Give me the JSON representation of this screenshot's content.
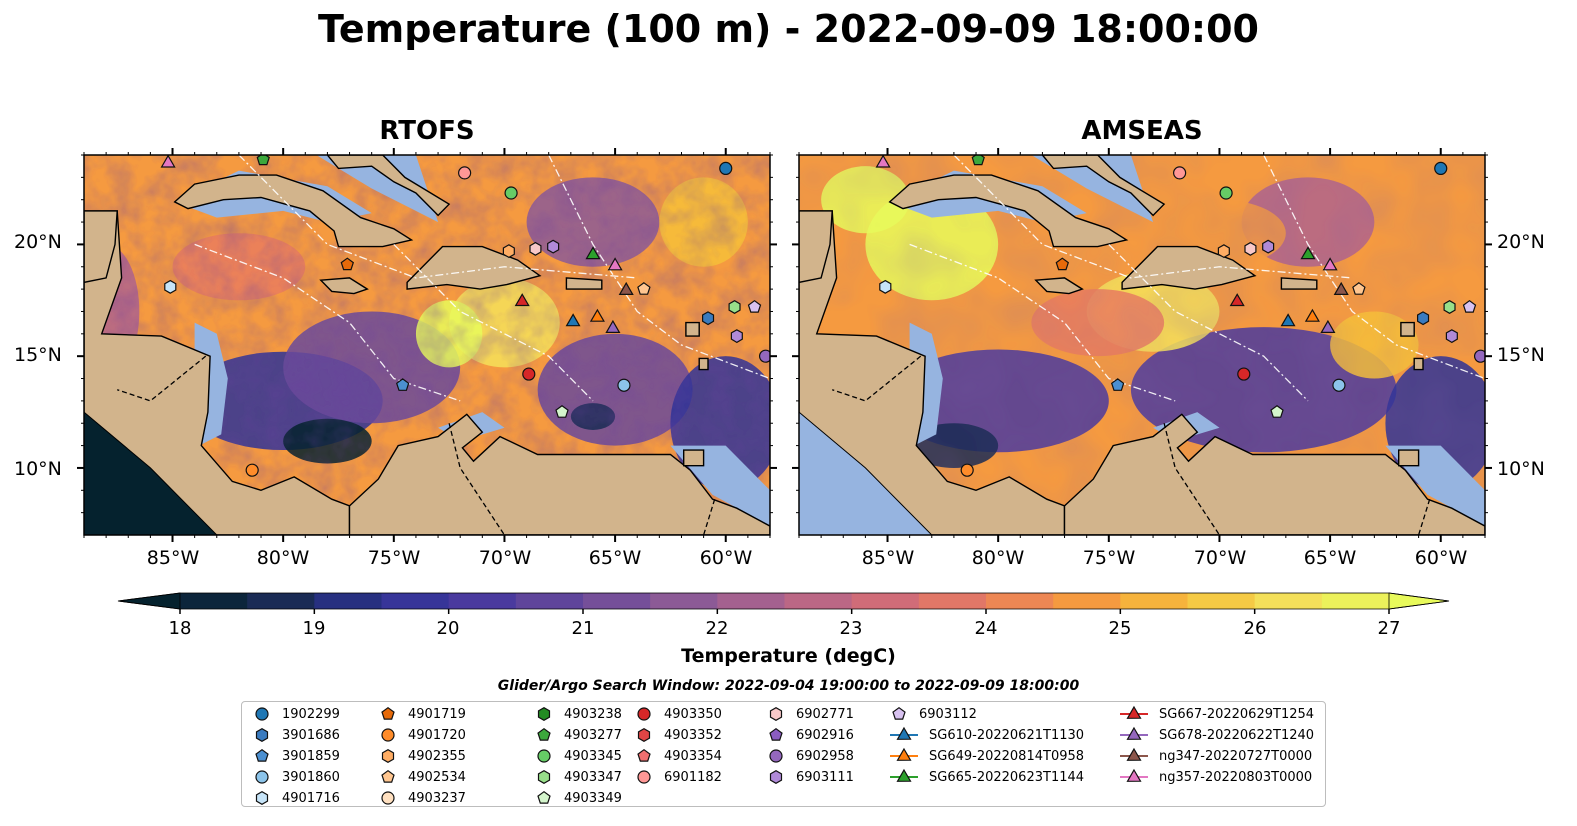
{
  "title": "Temperature (100 m) - 2022-09-09 18:00:00",
  "panels": [
    {
      "title": "RTOFS"
    },
    {
      "title": "AMSEAS"
    }
  ],
  "map_extent": {
    "lon": [
      -89,
      -58
    ],
    "lat": [
      7,
      24
    ]
  },
  "lat_ticks": [
    "20°N",
    "15°N",
    "10°N"
  ],
  "lon_ticks": [
    "85°W",
    "80°W",
    "75°W",
    "70°W",
    "65°W",
    "60°W"
  ],
  "colorbar": {
    "label": "Temperature (degC)",
    "ticks": [
      "18",
      "19",
      "20",
      "21",
      "22",
      "23",
      "24",
      "25",
      "26",
      "27"
    ],
    "min": 18,
    "max": 27,
    "extend": "both",
    "colormap": "thermal",
    "colors": [
      "#05222e",
      "#1a2b55",
      "#2e3396",
      "#4a3a9e",
      "#6a4a9a",
      "#8c5a96",
      "#b0648c",
      "#d06c78",
      "#e97d5e",
      "#f59a40",
      "#f6bf3a",
      "#f4e05a",
      "#e8fa5b"
    ]
  },
  "colors": {
    "land": "#d2b48c",
    "shallow_water": "#96b4e0"
  },
  "legend": {
    "title": "Glider/Argo Search Window: 2022-09-04 19:00:00 to 2022-09-09 18:00:00",
    "columns": [
      [
        {
          "label": "1902299",
          "marker": "circle",
          "color": "#1f77b4"
        },
        {
          "label": "3901686",
          "marker": "hexagon",
          "color": "#3a7bbf"
        },
        {
          "label": "3901859",
          "marker": "pentagon",
          "color": "#4b8fd0"
        },
        {
          "label": "3901860",
          "marker": "circle",
          "color": "#8cc4ea"
        },
        {
          "label": "4901716",
          "marker": "hexagon",
          "color": "#c6e4f8"
        }
      ],
      [
        {
          "label": "4901719",
          "marker": "pentagon",
          "color": "#e66a0a"
        },
        {
          "label": "4901720",
          "marker": "circle",
          "color": "#ff8c2a"
        },
        {
          "label": "4902355",
          "marker": "hexagon",
          "color": "#ffad64"
        },
        {
          "label": "4902534",
          "marker": "pentagon",
          "color": "#ffc690"
        },
        {
          "label": "4903237",
          "marker": "circle",
          "color": "#ffe0c0"
        }
      ],
      [
        {
          "label": "4903238",
          "marker": "hexagon",
          "color": "#238b23"
        },
        {
          "label": "4903277",
          "marker": "pentagon",
          "color": "#3ca83c"
        },
        {
          "label": "4903345",
          "marker": "circle",
          "color": "#66cc66"
        },
        {
          "label": "4903347",
          "marker": "hexagon",
          "color": "#98df8a"
        },
        {
          "label": "4903349",
          "marker": "pentagon",
          "color": "#d4f5cc"
        }
      ],
      [
        {
          "label": "4903350",
          "marker": "circle",
          "color": "#d62728"
        },
        {
          "label": "4903352",
          "marker": "hexagon",
          "color": "#e04545"
        },
        {
          "label": "4903354",
          "marker": "pentagon",
          "color": "#f07070"
        },
        {
          "label": "6901182",
          "marker": "circle",
          "color": "#ff9896"
        }
      ],
      [
        {
          "label": "6902771",
          "marker": "hexagon",
          "color": "#f8c8c8"
        },
        {
          "label": "6902916",
          "marker": "pentagon",
          "color": "#8a5cc0"
        },
        {
          "label": "6902958",
          "marker": "circle",
          "color": "#9467bd"
        },
        {
          "label": "6903111",
          "marker": "hexagon",
          "color": "#b08ad8"
        }
      ],
      [
        {
          "label": "6903112",
          "marker": "pentagon",
          "color": "#d8c2f0"
        },
        {
          "label": "SG610-20220621T1130",
          "marker": "triangle",
          "color": "#1f77b4"
        },
        {
          "label": "SG649-20220814T0958",
          "marker": "triangle",
          "color": "#ff7f0e"
        },
        {
          "label": "SG665-20220623T1144",
          "marker": "triangle",
          "color": "#2ca02c"
        }
      ],
      [
        {
          "label": "SG667-20220629T1254",
          "marker": "triangle",
          "color": "#d62728"
        },
        {
          "label": "SG678-20220622T1240",
          "marker": "triangle",
          "color": "#9467bd"
        },
        {
          "label": "ng347-20220727T0000",
          "marker": "triangle",
          "color": "#8c564b"
        },
        {
          "label": "ng357-20220803T0000",
          "marker": "triangle",
          "color": "#e377c2"
        }
      ]
    ]
  },
  "observations": [
    {
      "id": "1902299",
      "lon": -60.0,
      "lat": 23.4
    },
    {
      "id": "6901182",
      "lon": -71.8,
      "lat": 23.2
    },
    {
      "id": "4903345",
      "lon": -69.7,
      "lat": 22.3
    },
    {
      "id": "4902355",
      "lon": -69.8,
      "lat": 19.7
    },
    {
      "id": "6902771",
      "lon": -68.6,
      "lat": 19.8
    },
    {
      "id": "6903111",
      "lon": -67.8,
      "lat": 19.9
    },
    {
      "id": "SG665-20220623T1144",
      "lon": -66.0,
      "lat": 19.6
    },
    {
      "id": "ng357-20220803T0000",
      "lon": -65.0,
      "lat": 19.1
    },
    {
      "id": "4901719",
      "lon": -77.1,
      "lat": 19.1
    },
    {
      "id": "4901716",
      "lon": -85.1,
      "lat": 18.1
    },
    {
      "id": "ng347-20220727T0000",
      "lon": -64.5,
      "lat": 18.0
    },
    {
      "id": "4902534",
      "lon": -63.7,
      "lat": 18.0
    },
    {
      "id": "SG667-20220629T1254",
      "lon": -69.2,
      "lat": 17.5
    },
    {
      "id": "SG610-20220621T1130",
      "lon": -66.9,
      "lat": 16.6
    },
    {
      "id": "SG649-20220814T0958",
      "lon": -65.8,
      "lat": 16.8
    },
    {
      "id": "SG678-20220622T1240",
      "lon": -65.1,
      "lat": 16.3
    },
    {
      "id": "3901686",
      "lon": -60.8,
      "lat": 16.7
    },
    {
      "id": "4903347",
      "lon": -59.6,
      "lat": 17.2
    },
    {
      "id": "6903112",
      "lon": -58.7,
      "lat": 17.2
    },
    {
      "id": "6903111",
      "lon": -59.5,
      "lat": 15.9
    },
    {
      "id": "6902958",
      "lon": -58.2,
      "lat": 15.0
    },
    {
      "id": "3901859",
      "lon": -74.6,
      "lat": 13.7
    },
    {
      "id": "4903350",
      "lon": -68.9,
      "lat": 14.2
    },
    {
      "id": "3901860",
      "lon": -64.6,
      "lat": 13.7
    },
    {
      "id": "4903349",
      "lon": -67.4,
      "lat": 12.5
    },
    {
      "id": "4901720",
      "lon": -81.4,
      "lat": 9.9
    },
    {
      "id": "4903277",
      "lon": -80.9,
      "lat": 23.8
    },
    {
      "id": "ng357-20220803T0000",
      "lon": -85.2,
      "lat": 23.7
    }
  ]
}
